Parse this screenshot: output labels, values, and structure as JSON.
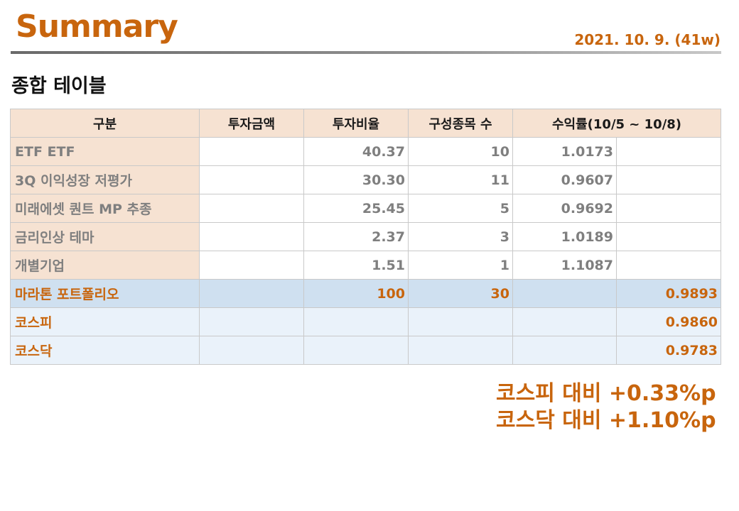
{
  "header": {
    "title": "Summary",
    "date": "2021. 10. 9. (41w)"
  },
  "section": {
    "title": "종합 테이블"
  },
  "table": {
    "columns": [
      "구분",
      "투자금액",
      "투자비율",
      "구성종목 수",
      "수익률(10/5 ~ 10/8)"
    ],
    "funds": [
      {
        "name": "ETF ETF",
        "amount": "",
        "ratio": "40.37",
        "count": "10",
        "return": "1.0173"
      },
      {
        "name": "3Q 이익성장 저평가",
        "amount": "",
        "ratio": "30.30",
        "count": "11",
        "return": "0.9607"
      },
      {
        "name": "미래에셋 퀀트 MP 추종",
        "amount": "",
        "ratio": "25.45",
        "count": "5",
        "return": "0.9692"
      },
      {
        "name": "금리인상 테마",
        "amount": "",
        "ratio": "2.37",
        "count": "3",
        "return": "1.0189"
      },
      {
        "name": "개별기업",
        "amount": "",
        "ratio": "1.51",
        "count": "1",
        "return": "1.1087"
      }
    ],
    "total": {
      "name": "마라톤 포트폴리오",
      "amount": "",
      "ratio": "100",
      "count": "30",
      "return": "0.9893"
    },
    "benchmarks": [
      {
        "name": "코스피",
        "return": "0.9860"
      },
      {
        "name": "코스닥",
        "return": "0.9783"
      }
    ]
  },
  "comparison": {
    "kospi": "코스피 대비 +0.33%p",
    "kosdaq": "코스닥 대비 +1.10%p"
  },
  "colors": {
    "accent": "#c8650d",
    "header_bg": "#f6e2d2",
    "total_bg": "#cfe0f0",
    "bench_bg": "#eaf2fa"
  }
}
